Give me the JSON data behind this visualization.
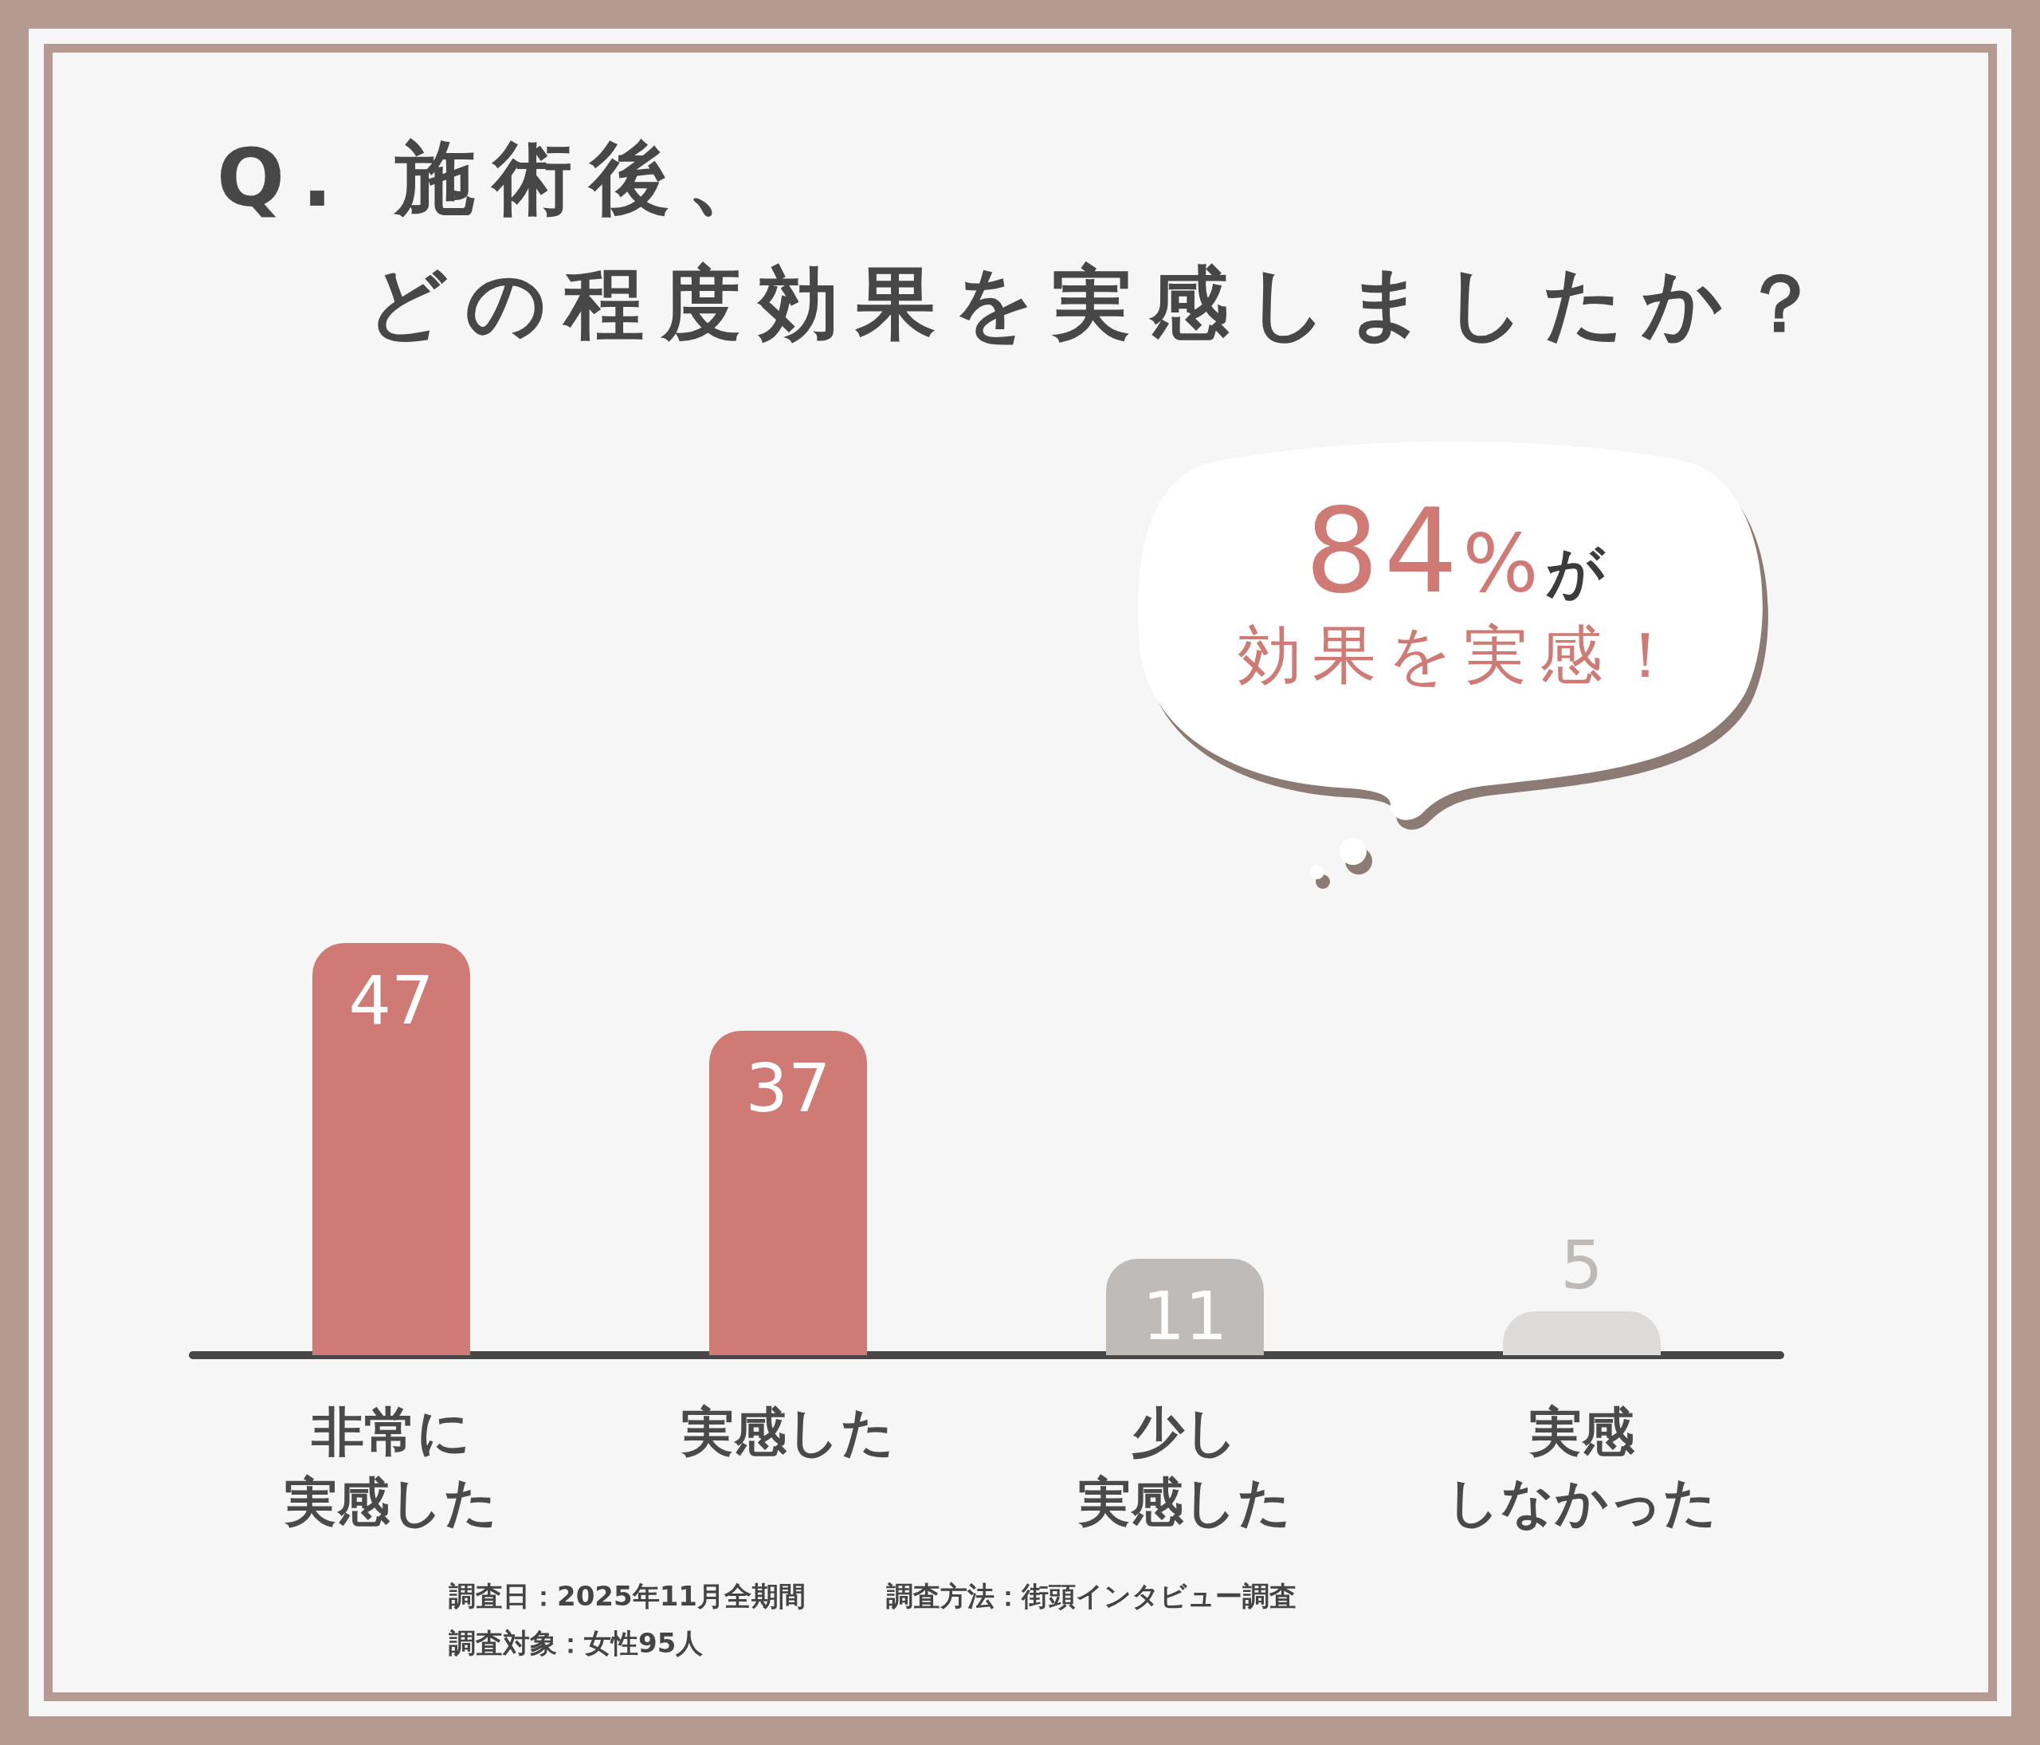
{
  "chart_data": {
    "type": "bar",
    "title": "Q. 施術後、どの程度効果を実感しましたか？",
    "categories": [
      "非常に実感した",
      "実感した",
      "少し実感した",
      "実感しなかった"
    ],
    "values": [
      47,
      37,
      11,
      5
    ],
    "colors": [
      "#cf7a74",
      "#cf7a74",
      "#bfbbb9",
      "#dcdbda"
    ],
    "data_labels": true,
    "annotations": [
      "84%が",
      "効果を実感！",
      "調査日：2025年11月全期間",
      "調査方法：街頭インタビュー調査",
      "調査対象：女性95人"
    ]
  }
}
